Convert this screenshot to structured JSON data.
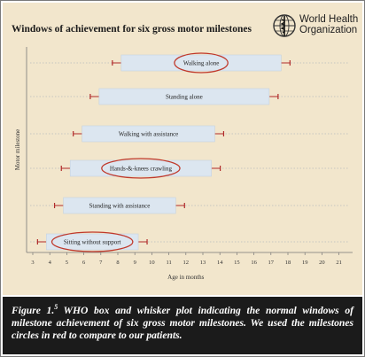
{
  "header": {
    "logo_line1": "World Health",
    "logo_line2": "Organization"
  },
  "chart_data": {
    "type": "box-whisker",
    "title": "Windows of achievement for six gross motor milestones",
    "xlabel": "Age in months",
    "ylabel": "Motor milestone",
    "xlim": [
      3,
      21
    ],
    "xticks": [
      "3",
      "4",
      "5",
      "6",
      "7",
      "8",
      "9",
      "10",
      "11",
      "12",
      "13",
      "14",
      "15",
      "16",
      "17",
      "18",
      "19",
      "20",
      "21"
    ],
    "grid": "horizontal dotted",
    "colors": {
      "box": "#dce6f0",
      "box_edge": "#c5d2e0",
      "whisker": "#b02a2a",
      "highlight": "#c0392b",
      "axis": "#777777"
    },
    "series": [
      {
        "label": "Walking alone",
        "box": [
          8.2,
          17.6
        ],
        "whisker": [
          8.2,
          17.6
        ],
        "highlighted": true
      },
      {
        "label": "Standing alone",
        "box": [
          6.9,
          16.9
        ],
        "whisker": [
          6.9,
          16.9
        ],
        "highlighted": false
      },
      {
        "label": "Walking with assistance",
        "box": [
          5.9,
          13.7
        ],
        "whisker": [
          5.9,
          13.7
        ],
        "highlighted": false
      },
      {
        "label": "Hands-&-knees crawling",
        "box": [
          5.2,
          13.5
        ],
        "whisker": [
          5.2,
          13.5
        ],
        "highlighted": true
      },
      {
        "label": "Standing with assistance",
        "box": [
          4.8,
          11.4
        ],
        "whisker": [
          4.8,
          11.4
        ],
        "highlighted": false
      },
      {
        "label": "Sitting without support",
        "box": [
          3.8,
          9.2
        ],
        "whisker": [
          3.8,
          9.2
        ],
        "highlighted": true
      }
    ]
  },
  "caption": {
    "label": "Figure 1.",
    "ref": "5",
    "text": " WHO box and whisker plot indicating the normal windows of milestone achievement of six gross motor milestones. We used the milestones circles in red to compare to our patients."
  }
}
